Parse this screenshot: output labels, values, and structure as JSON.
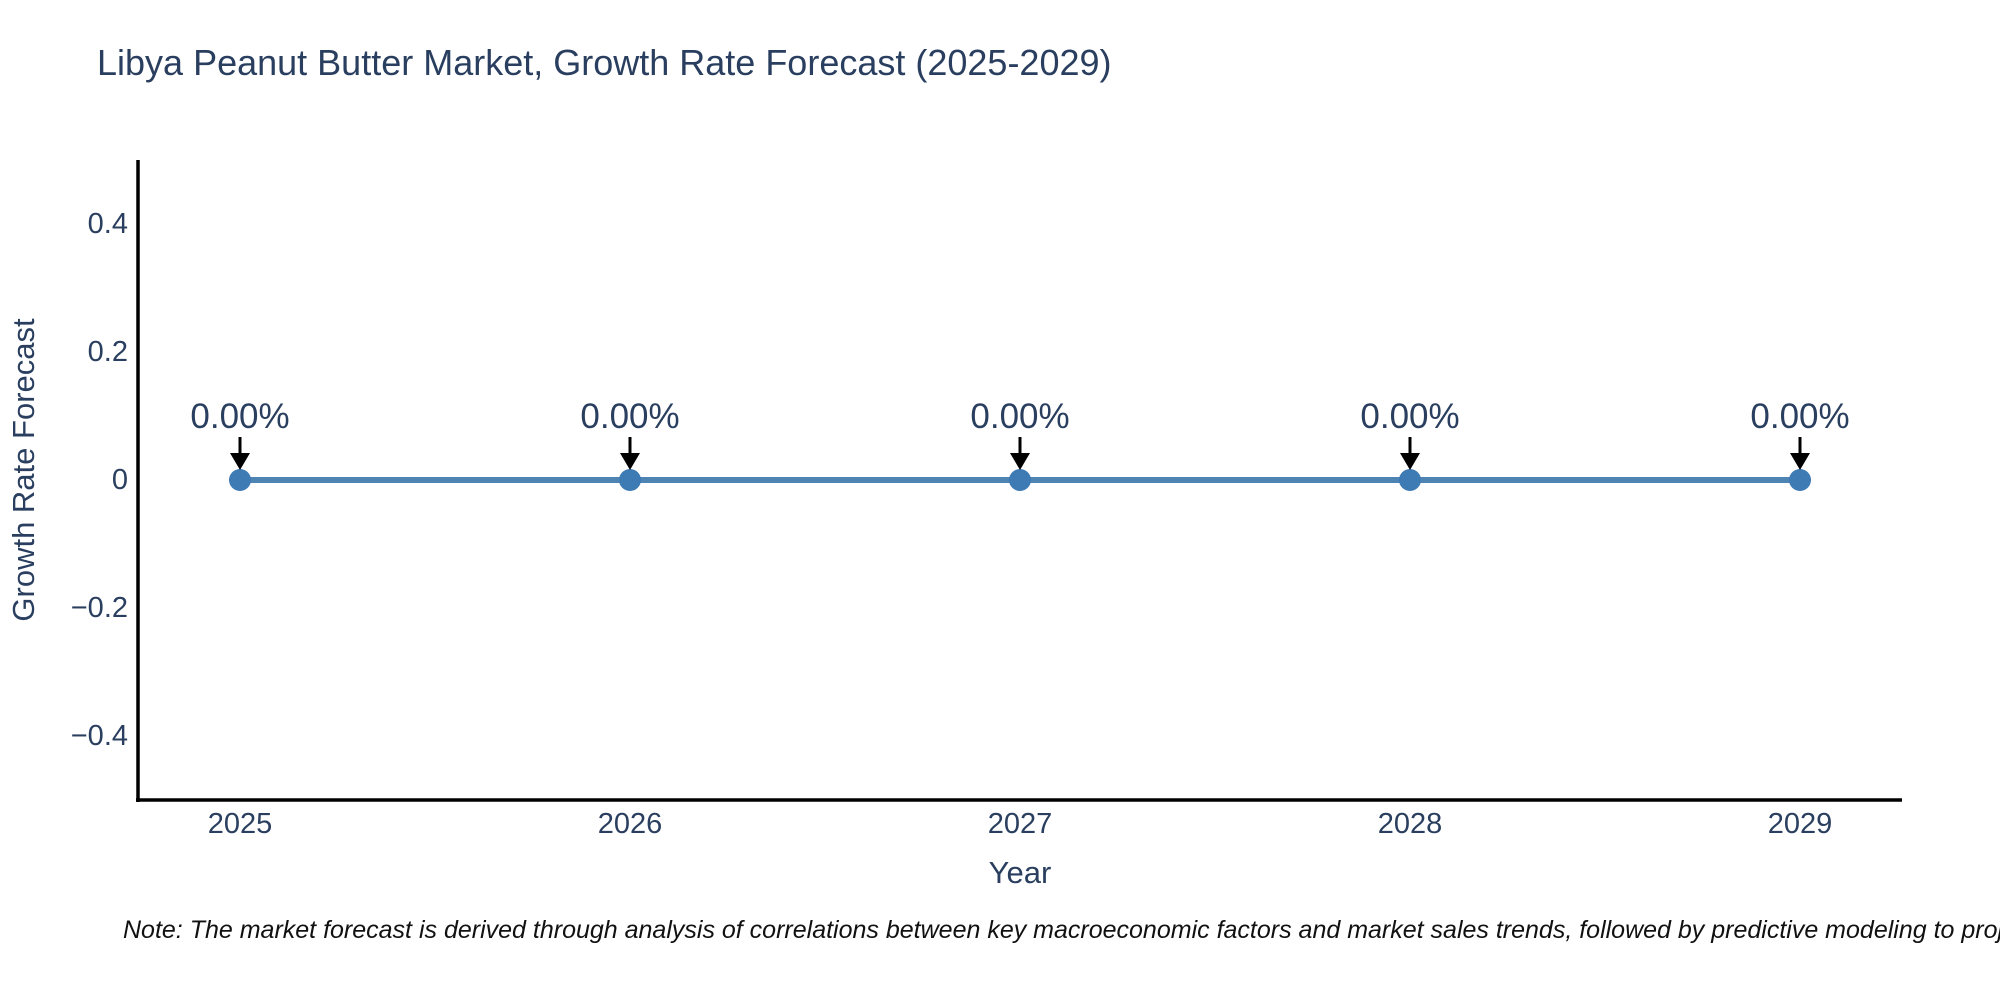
{
  "title": "Libya Peanut Butter Market, Growth Rate Forecast (2025-2029)",
  "note": "Note: The market forecast is derived through analysis of correlations between key macroeconomic factors and market sales trends, followed by predictive modeling to project future sales",
  "chart_data": {
    "type": "line",
    "title": "Libya Peanut Butter Market, Growth Rate Forecast (2025-2029)",
    "x": [
      2025,
      2026,
      2027,
      2028,
      2029
    ],
    "xtick_labels": [
      "2025",
      "2026",
      "2027",
      "2028",
      "2029"
    ],
    "series": [
      {
        "name": "Growth Rate Forecast",
        "values": [
          0,
          0,
          0,
          0,
          0
        ],
        "point_labels": [
          "0.00%",
          "0.00%",
          "0.00%",
          "0.00%",
          "0.00%"
        ]
      }
    ],
    "xlabel": "Year",
    "ylabel": "Growth Rate Forecast",
    "ylim": [
      -0.5,
      0.5
    ],
    "yticks": [
      0.4,
      0.2,
      0,
      -0.2,
      -0.4
    ],
    "ytick_labels": [
      "0.4",
      "0.2",
      "0",
      "−0.2",
      "−0.4"
    ],
    "grid": false,
    "legend": false,
    "annotations_have_arrows": true,
    "colors": {
      "line": "#4d84b3",
      "marker": "#3e7ab3",
      "axis_line": "#000000",
      "text": "#2a3f5f",
      "arrow": "#000000",
      "note_text": "#111111",
      "background": "#ffffff"
    }
  }
}
